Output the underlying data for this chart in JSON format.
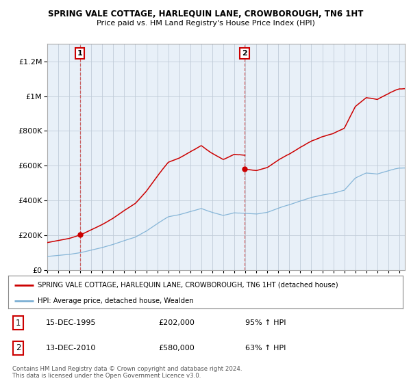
{
  "title": "SPRING VALE COTTAGE, HARLEQUIN LANE, CROWBOROUGH, TN6 1HT",
  "subtitle": "Price paid vs. HM Land Registry's House Price Index (HPI)",
  "house_color": "#cc0000",
  "hpi_color": "#7bafd4",
  "bg_color": "#e8f0f8",
  "grid_color": "#c0ccd8",
  "ylim": [
    0,
    1300000
  ],
  "yticks": [
    0,
    200000,
    400000,
    600000,
    800000,
    1000000,
    1200000
  ],
  "ytick_labels": [
    "£0",
    "£200K",
    "£400K",
    "£600K",
    "£800K",
    "£1M",
    "£1.2M"
  ],
  "purchases": [
    {
      "date_num": 1995.958,
      "price": 202000,
      "label": "1"
    },
    {
      "date_num": 2010.958,
      "price": 580000,
      "label": "2"
    }
  ],
  "legend_house": "SPRING VALE COTTAGE, HARLEQUIN LANE, CROWBOROUGH, TN6 1HT (detached house)",
  "legend_hpi": "HPI: Average price, detached house, Wealden",
  "table_rows": [
    {
      "num": "1",
      "date": "15-DEC-1995",
      "price": "£202,000",
      "hpi": "95% ↑ HPI"
    },
    {
      "num": "2",
      "date": "13-DEC-2010",
      "price": "£580,000",
      "hpi": "63% ↑ HPI"
    }
  ],
  "footnote": "Contains HM Land Registry data © Crown copyright and database right 2024.\nThis data is licensed under the Open Government Licence v3.0.",
  "xmin": 1993,
  "xmax": 2025.5
}
